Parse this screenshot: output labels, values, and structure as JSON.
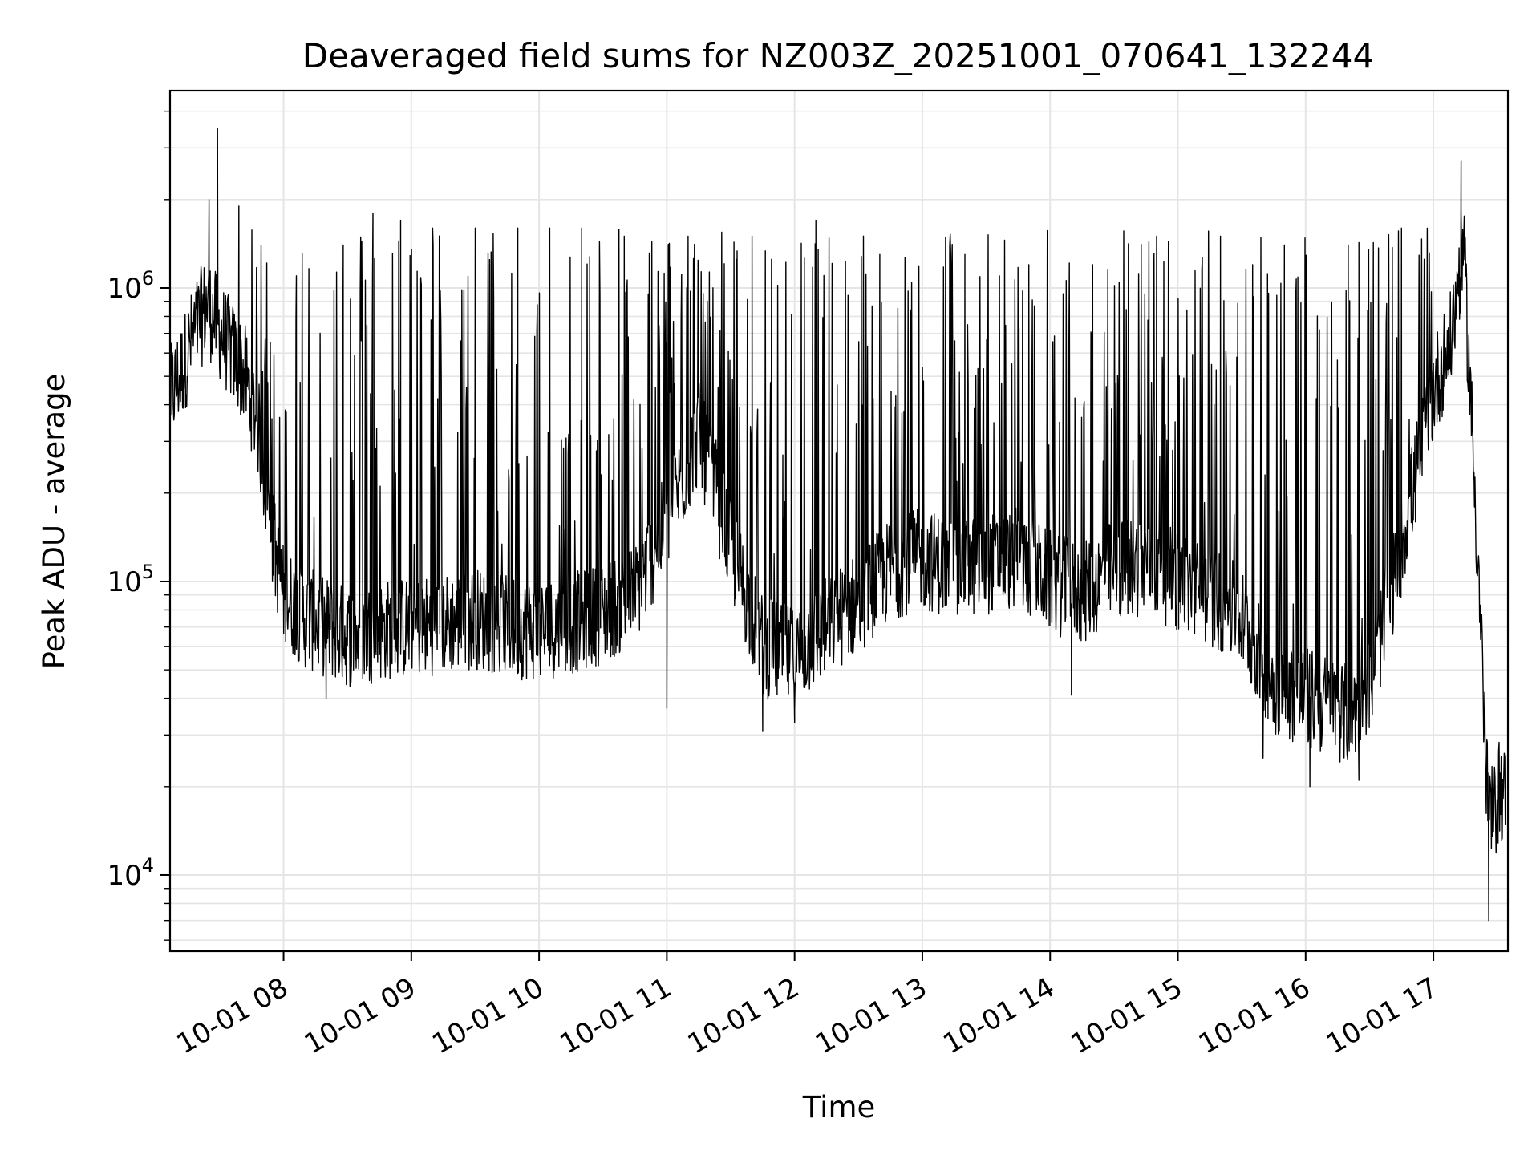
{
  "chart_data": {
    "type": "line",
    "title": "Deaveraged field sums for NZ003Z_20251001_070641_132244",
    "xlabel": "Time",
    "ylabel": "Peak ADU - average",
    "yscale": "log",
    "grid": true,
    "line_color": "#000000",
    "grid_color": "#e5e5e5",
    "xlim": [
      "2025-10-01 07:06:41",
      "2025-10-01 17:35:00"
    ],
    "ylim": [
      5500,
      4700000
    ],
    "x_ticks": [
      {
        "value": "2025-10-01 08:00",
        "label": "10-01 08"
      },
      {
        "value": "2025-10-01 09:00",
        "label": "10-01 09"
      },
      {
        "value": "2025-10-01 10:00",
        "label": "10-01 10"
      },
      {
        "value": "2025-10-01 11:00",
        "label": "10-01 11"
      },
      {
        "value": "2025-10-01 12:00",
        "label": "10-01 12"
      },
      {
        "value": "2025-10-01 13:00",
        "label": "10-01 13"
      },
      {
        "value": "2025-10-01 14:00",
        "label": "10-01 14"
      },
      {
        "value": "2025-10-01 15:00",
        "label": "10-01 15"
      },
      {
        "value": "2025-10-01 16:00",
        "label": "10-01 16"
      },
      {
        "value": "2025-10-01 17:00",
        "label": "10-01 17"
      }
    ],
    "y_ticks": [
      {
        "value": 10000,
        "base": "10",
        "exp": "4"
      },
      {
        "value": 100000,
        "base": "10",
        "exp": "5"
      },
      {
        "value": 1000000,
        "base": "10",
        "exp": "6"
      }
    ],
    "series": [
      {
        "x": [
          "2025-10-01 07:07",
          "2025-10-01 07:12",
          "2025-10-01 07:18",
          "2025-10-01 07:24",
          "2025-10-01 07:30",
          "2025-10-01 07:36",
          "2025-10-01 07:42",
          "2025-10-01 07:48",
          "2025-10-01 07:54",
          "2025-10-01 08:00",
          "2025-10-01 08:10",
          "2025-10-01 08:20",
          "2025-10-01 08:30",
          "2025-10-01 08:45",
          "2025-10-01 09:00",
          "2025-10-01 09:15",
          "2025-10-01 09:30",
          "2025-10-01 09:45",
          "2025-10-01 10:00",
          "2025-10-01 10:15",
          "2025-10-01 10:30",
          "2025-10-01 10:45",
          "2025-10-01 11:00",
          "2025-10-01 11:15",
          "2025-10-01 11:30",
          "2025-10-01 11:45",
          "2025-10-01 12:00",
          "2025-10-01 12:15",
          "2025-10-01 12:30",
          "2025-10-01 12:45",
          "2025-10-01 13:00",
          "2025-10-01 13:15",
          "2025-10-01 13:30",
          "2025-10-01 13:45",
          "2025-10-01 14:00",
          "2025-10-01 14:15",
          "2025-10-01 14:30",
          "2025-10-01 14:45",
          "2025-10-01 15:00",
          "2025-10-01 15:15",
          "2025-10-01 15:30",
          "2025-10-01 15:45",
          "2025-10-01 16:00",
          "2025-10-01 16:10",
          "2025-10-01 16:20",
          "2025-10-01 16:30",
          "2025-10-01 16:40",
          "2025-10-01 16:50",
          "2025-10-01 17:00",
          "2025-10-01 17:08",
          "2025-10-01 17:14",
          "2025-10-01 17:18",
          "2025-10-01 17:22",
          "2025-10-01 17:25",
          "2025-10-01 17:28",
          "2025-10-01 17:31",
          "2025-10-01 17:34"
        ],
        "base_values": [
          430000,
          520000,
          700000,
          880000,
          720000,
          600000,
          500000,
          340000,
          150000,
          90000,
          75000,
          70000,
          65000,
          68000,
          70000,
          72000,
          75000,
          70000,
          68000,
          72000,
          78000,
          90000,
          160000,
          320000,
          130000,
          60000,
          55000,
          70000,
          85000,
          110000,
          120000,
          110000,
          115000,
          120000,
          100000,
          90000,
          110000,
          115000,
          100000,
          90000,
          75000,
          45000,
          40000,
          38000,
          35000,
          45000,
          90000,
          200000,
          450000,
          650000,
          1400000,
          350000,
          80000,
          20000,
          15000,
          20000,
          18000
        ],
        "spikes": [
          {
            "x": "2025-10-01 07:29",
            "value": 3500000
          },
          {
            "x": "2025-10-01 07:25",
            "value": 2000000
          },
          {
            "x": "2025-10-01 07:39",
            "value": 1900000
          },
          {
            "x": "2025-10-01 08:06",
            "value": 1100000
          },
          {
            "x": "2025-10-01 08:28",
            "value": 1400000
          },
          {
            "x": "2025-10-01 08:42",
            "value": 1800000
          },
          {
            "x": "2025-10-01 08:55",
            "value": 1700000
          },
          {
            "x": "2025-10-01 09:10",
            "value": 1600000
          },
          {
            "x": "2025-10-01 09:30",
            "value": 1600000
          },
          {
            "x": "2025-10-01 09:50",
            "value": 1600000
          },
          {
            "x": "2025-10-01 10:05",
            "value": 1600000
          },
          {
            "x": "2025-10-01 10:20",
            "value": 1600000
          },
          {
            "x": "2025-10-01 10:40",
            "value": 1500000
          },
          {
            "x": "2025-10-01 11:10",
            "value": 1500000
          },
          {
            "x": "2025-10-01 11:40",
            "value": 1500000
          },
          {
            "x": "2025-10-01 12:10",
            "value": 1700000
          },
          {
            "x": "2025-10-01 12:40",
            "value": 1300000
          },
          {
            "x": "2025-10-01 13:20",
            "value": 1300000
          },
          {
            "x": "2025-10-01 13:50",
            "value": 1200000
          },
          {
            "x": "2025-10-01 14:20",
            "value": 1200000
          },
          {
            "x": "2025-10-01 14:50",
            "value": 1500000
          },
          {
            "x": "2025-10-01 15:20",
            "value": 1500000
          },
          {
            "x": "2025-10-01 15:50",
            "value": 1400000
          },
          {
            "x": "2025-10-01 16:20",
            "value": 1400000
          },
          {
            "x": "2025-10-01 16:45",
            "value": 1600000
          },
          {
            "x": "2025-10-01 17:13",
            "value": 2700000
          }
        ],
        "dips": [
          {
            "x": "2025-10-01 08:20",
            "value": 40000
          },
          {
            "x": "2025-10-01 11:00",
            "value": 37000
          },
          {
            "x": "2025-10-01 11:45",
            "value": 31000
          },
          {
            "x": "2025-10-01 12:00",
            "value": 33000
          },
          {
            "x": "2025-10-01 14:10",
            "value": 41000
          },
          {
            "x": "2025-10-01 15:40",
            "value": 25000
          },
          {
            "x": "2025-10-01 16:02",
            "value": 20000
          },
          {
            "x": "2025-10-01 16:25",
            "value": 21000
          },
          {
            "x": "2025-10-01 17:26",
            "value": 7000
          }
        ]
      }
    ]
  }
}
